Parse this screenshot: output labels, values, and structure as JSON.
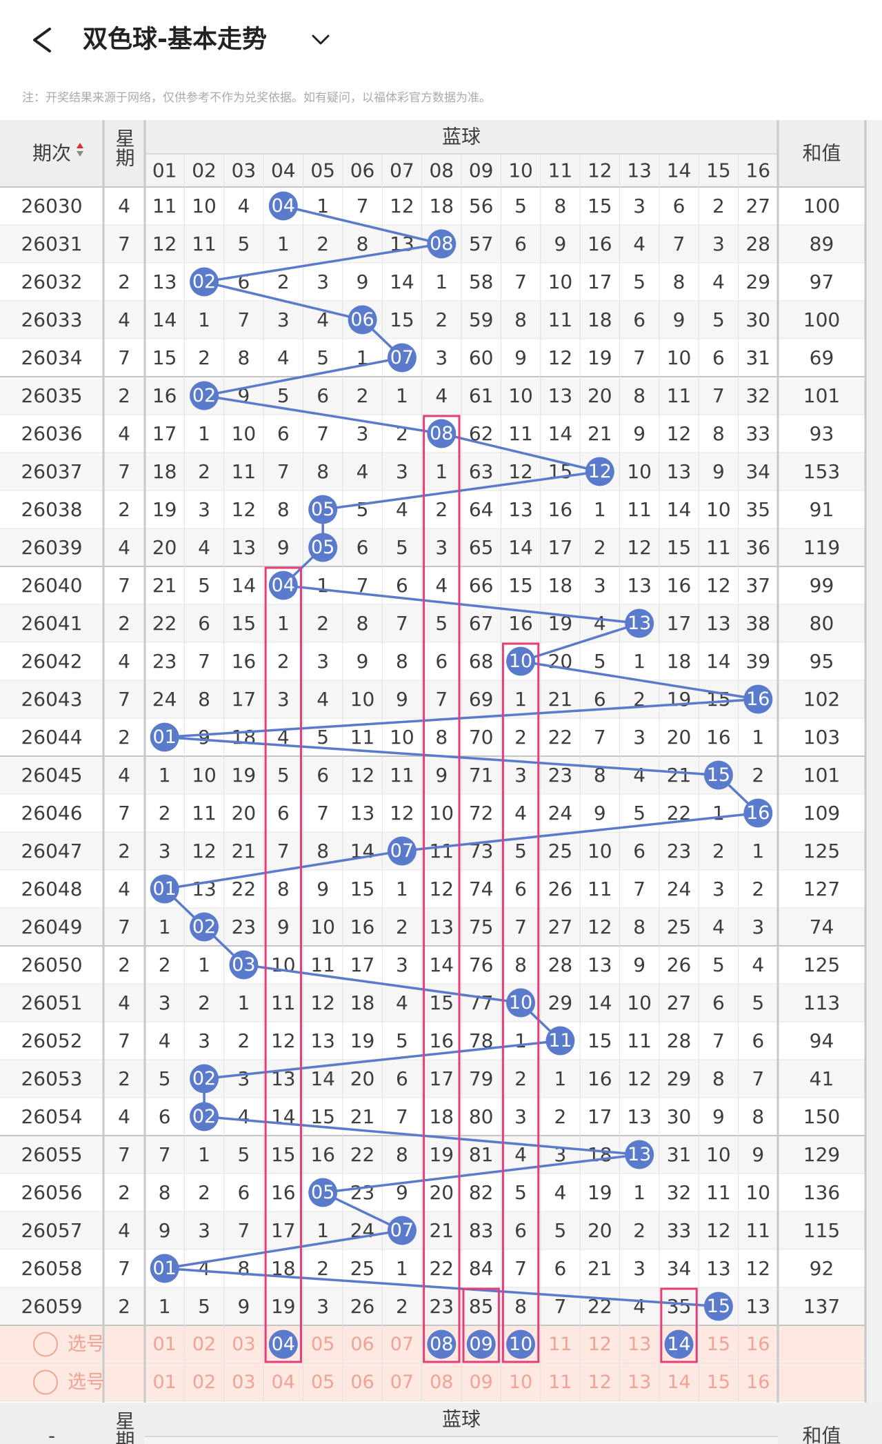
{
  "header": {
    "title": "双色球-基本走势",
    "note": "注：开奖结果来源于网络，仅供参考不作为兑奖依据。如有疑问，以福体彩官方数据为准。"
  },
  "table": {
    "col_issue": "期次",
    "col_week": "星期",
    "group": "蓝球",
    "col_sum": "和值",
    "numbers": [
      "01",
      "02",
      "03",
      "04",
      "05",
      "06",
      "07",
      "08",
      "09",
      "10",
      "11",
      "12",
      "13",
      "14",
      "15",
      "16"
    ],
    "rows": [
      {
        "issue": "26030",
        "week": "4",
        "cells": [
          "11",
          "10",
          "4",
          {
            "ball": "04"
          },
          "1",
          "7",
          "12",
          "18",
          "56",
          "5",
          "8",
          "15",
          "3",
          "6",
          "2",
          "27"
        ],
        "sum": "100"
      },
      {
        "issue": "26031",
        "week": "7",
        "cells": [
          "12",
          "11",
          "5",
          "1",
          "2",
          "8",
          "13",
          {
            "ball": "08"
          },
          "57",
          "6",
          "9",
          "16",
          "4",
          "7",
          "3",
          "28"
        ],
        "sum": "89"
      },
      {
        "issue": "26032",
        "week": "2",
        "cells": [
          "13",
          {
            "ball": "02"
          },
          "6",
          "2",
          "3",
          "9",
          "14",
          "1",
          "58",
          "7",
          "10",
          "17",
          "5",
          "8",
          "4",
          "29"
        ],
        "sum": "97"
      },
      {
        "issue": "26033",
        "week": "4",
        "cells": [
          "14",
          "1",
          "7",
          "3",
          "4",
          {
            "ball": "06"
          },
          "15",
          "2",
          "59",
          "8",
          "11",
          "18",
          "6",
          "9",
          "5",
          "30"
        ],
        "sum": "100"
      },
      {
        "issue": "26034",
        "week": "7",
        "cells": [
          "15",
          "2",
          "8",
          "4",
          "5",
          "1",
          {
            "ball": "07"
          },
          "3",
          "60",
          "9",
          "12",
          "19",
          "7",
          "10",
          "6",
          "31"
        ],
        "sum": "69"
      },
      {
        "issue": "26035",
        "week": "2",
        "cells": [
          "16",
          {
            "ball": "02"
          },
          "9",
          "5",
          "6",
          "2",
          "1",
          "4",
          "61",
          "10",
          "13",
          "20",
          "8",
          "11",
          "7",
          "32"
        ],
        "sum": "101"
      },
      {
        "issue": "26036",
        "week": "4",
        "cells": [
          "17",
          "1",
          "10",
          "6",
          "7",
          "3",
          "2",
          {
            "ball": "08"
          },
          "62",
          "11",
          "14",
          "21",
          "9",
          "12",
          "8",
          "33"
        ],
        "sum": "93"
      },
      {
        "issue": "26037",
        "week": "7",
        "cells": [
          "18",
          "2",
          "11",
          "7",
          "8",
          "4",
          "3",
          "1",
          "63",
          "12",
          "15",
          {
            "ball": "12"
          },
          "10",
          "13",
          "9",
          "34"
        ],
        "sum": "153"
      },
      {
        "issue": "26038",
        "week": "2",
        "cells": [
          "19",
          "3",
          "12",
          "8",
          {
            "ball": "05"
          },
          "5",
          "4",
          "2",
          "64",
          "13",
          "16",
          "1",
          "11",
          "14",
          "10",
          "35"
        ],
        "sum": "91"
      },
      {
        "issue": "26039",
        "week": "4",
        "cells": [
          "20",
          "4",
          "13",
          "9",
          {
            "ball": "05"
          },
          "6",
          "5",
          "3",
          "65",
          "14",
          "17",
          "2",
          "12",
          "15",
          "11",
          "36"
        ],
        "sum": "119"
      },
      {
        "issue": "26040",
        "week": "7",
        "cells": [
          "21",
          "5",
          "14",
          {
            "ball": "04"
          },
          "1",
          "7",
          "6",
          "4",
          "66",
          "15",
          "18",
          "3",
          "13",
          "16",
          "12",
          "37"
        ],
        "sum": "99"
      },
      {
        "issue": "26041",
        "week": "2",
        "cells": [
          "22",
          "6",
          "15",
          "1",
          "2",
          "8",
          "7",
          "5",
          "67",
          "16",
          "19",
          "4",
          {
            "ball": "13"
          },
          "17",
          "13",
          "38"
        ],
        "sum": "80"
      },
      {
        "issue": "26042",
        "week": "4",
        "cells": [
          "23",
          "7",
          "16",
          "2",
          "3",
          "9",
          "8",
          "6",
          "68",
          {
            "ball": "10"
          },
          "20",
          "5",
          "1",
          "18",
          "14",
          "39"
        ],
        "sum": "95"
      },
      {
        "issue": "26043",
        "week": "7",
        "cells": [
          "24",
          "8",
          "17",
          "3",
          "4",
          "10",
          "9",
          "7",
          "69",
          "1",
          "21",
          "6",
          "2",
          "19",
          "15",
          {
            "ball": "16"
          }
        ],
        "sum": "102"
      },
      {
        "issue": "26044",
        "week": "2",
        "cells": [
          {
            "ball": "01"
          },
          "9",
          "18",
          "4",
          "5",
          "11",
          "10",
          "8",
          "70",
          "2",
          "22",
          "7",
          "3",
          "20",
          "16",
          "1"
        ],
        "sum": "103"
      },
      {
        "issue": "26045",
        "week": "4",
        "cells": [
          "1",
          "10",
          "19",
          "5",
          "6",
          "12",
          "11",
          "9",
          "71",
          "3",
          "23",
          "8",
          "4",
          "21",
          {
            "ball": "15"
          },
          "2"
        ],
        "sum": "101"
      },
      {
        "issue": "26046",
        "week": "7",
        "cells": [
          "2",
          "11",
          "20",
          "6",
          "7",
          "13",
          "12",
          "10",
          "72",
          "4",
          "24",
          "9",
          "5",
          "22",
          "1",
          {
            "ball": "16"
          }
        ],
        "sum": "109"
      },
      {
        "issue": "26047",
        "week": "2",
        "cells": [
          "3",
          "12",
          "21",
          "7",
          "8",
          "14",
          {
            "ball": "07"
          },
          "11",
          "73",
          "5",
          "25",
          "10",
          "6",
          "23",
          "2",
          "1"
        ],
        "sum": "125"
      },
      {
        "issue": "26048",
        "week": "4",
        "cells": [
          {
            "ball": "01"
          },
          "13",
          "22",
          "8",
          "9",
          "15",
          "1",
          "12",
          "74",
          "6",
          "26",
          "11",
          "7",
          "24",
          "3",
          "2"
        ],
        "sum": "127"
      },
      {
        "issue": "26049",
        "week": "7",
        "cells": [
          "1",
          {
            "ball": "02"
          },
          "23",
          "9",
          "10",
          "16",
          "2",
          "13",
          "75",
          "7",
          "27",
          "12",
          "8",
          "25",
          "4",
          "3"
        ],
        "sum": "74"
      },
      {
        "issue": "26050",
        "week": "2",
        "cells": [
          "2",
          "1",
          {
            "ball": "03"
          },
          "10",
          "11",
          "17",
          "3",
          "14",
          "76",
          "8",
          "28",
          "13",
          "9",
          "26",
          "5",
          "4"
        ],
        "sum": "125"
      },
      {
        "issue": "26051",
        "week": "4",
        "cells": [
          "3",
          "2",
          "1",
          "11",
          "12",
          "18",
          "4",
          "15",
          "77",
          {
            "ball": "10"
          },
          "29",
          "14",
          "10",
          "27",
          "6",
          "5"
        ],
        "sum": "113"
      },
      {
        "issue": "26052",
        "week": "7",
        "cells": [
          "4",
          "3",
          "2",
          "12",
          "13",
          "19",
          "5",
          "16",
          "78",
          "1",
          {
            "ball": "11"
          },
          "15",
          "11",
          "28",
          "7",
          "6"
        ],
        "sum": "94"
      },
      {
        "issue": "26053",
        "week": "2",
        "cells": [
          "5",
          {
            "ball": "02"
          },
          "3",
          "13",
          "14",
          "20",
          "6",
          "17",
          "79",
          "2",
          "1",
          "16",
          "12",
          "29",
          "8",
          "7"
        ],
        "sum": "41"
      },
      {
        "issue": "26054",
        "week": "4",
        "cells": [
          "6",
          {
            "ball": "02"
          },
          "4",
          "14",
          "15",
          "21",
          "7",
          "18",
          "80",
          "3",
          "2",
          "17",
          "13",
          "30",
          "9",
          "8"
        ],
        "sum": "150"
      },
      {
        "issue": "26055",
        "week": "7",
        "cells": [
          "7",
          "1",
          "5",
          "15",
          "16",
          "22",
          "8",
          "19",
          "81",
          "4",
          "3",
          "18",
          {
            "ball": "13"
          },
          "31",
          "10",
          "9"
        ],
        "sum": "129"
      },
      {
        "issue": "26056",
        "week": "2",
        "cells": [
          "8",
          "2",
          "6",
          "16",
          {
            "ball": "05"
          },
          "23",
          "9",
          "20",
          "82",
          "5",
          "4",
          "19",
          "1",
          "32",
          "11",
          "10"
        ],
        "sum": "136"
      },
      {
        "issue": "26057",
        "week": "4",
        "cells": [
          "9",
          "3",
          "7",
          "17",
          "1",
          "24",
          {
            "ball": "07"
          },
          "21",
          "83",
          "6",
          "5",
          "20",
          "2",
          "33",
          "12",
          "11"
        ],
        "sum": "115"
      },
      {
        "issue": "26058",
        "week": "7",
        "cells": [
          {
            "ball": "01"
          },
          "4",
          "8",
          "18",
          "2",
          "25",
          "1",
          "22",
          "84",
          "7",
          "6",
          "21",
          "3",
          "34",
          "13",
          "12"
        ],
        "sum": "92"
      },
      {
        "issue": "26059",
        "week": "2",
        "cells": [
          "1",
          "5",
          "9",
          "19",
          "3",
          "26",
          "2",
          "23",
          "85",
          "8",
          "7",
          "22",
          "4",
          "35",
          {
            "ball": "15"
          },
          "13"
        ],
        "sum": "137"
      }
    ],
    "select_label": "选号",
    "select_rows": [
      [
        "01",
        "02",
        "03",
        {
          "ball": "04"
        },
        "05",
        "06",
        "07",
        {
          "ball": "08"
        },
        {
          "ball": "09"
        },
        {
          "ball": "10"
        },
        "11",
        "12",
        "13",
        {
          "ball": "14"
        },
        "15",
        "16"
      ],
      [
        "01",
        "02",
        "03",
        "04",
        "05",
        "06",
        "07",
        "08",
        "09",
        "10",
        "11",
        "12",
        "13",
        "14",
        "15",
        "16"
      ]
    ],
    "footer_issue": "-"
  }
}
